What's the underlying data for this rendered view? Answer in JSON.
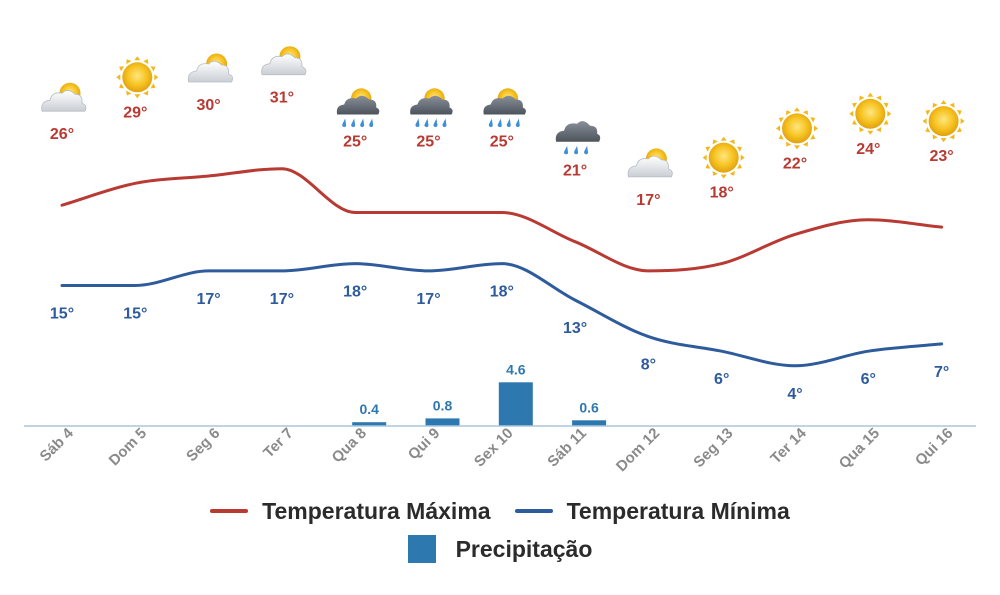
{
  "chart_data": {
    "type": "line",
    "categories": [
      "Sáb 4",
      "Dom 5",
      "Seg 6",
      "Ter 7",
      "Qua 8",
      "Qui 9",
      "Sex 10",
      "Sáb 11",
      "Dom 12",
      "Seg 13",
      "Ter 14",
      "Qua 15",
      "Qui 16"
    ],
    "series": [
      {
        "name": "Temperatura Máxima",
        "kind": "line",
        "color": "#b83a32",
        "values": [
          26,
          29,
          30,
          31,
          25,
          25,
          25,
          21,
          17,
          18,
          22,
          24,
          23
        ]
      },
      {
        "name": "Temperatura Mínima",
        "kind": "line",
        "color": "#2e5b9c",
        "values": [
          15,
          15,
          17,
          17,
          18,
          17,
          18,
          13,
          8,
          6,
          4,
          6,
          7
        ]
      },
      {
        "name": "Precipitação",
        "kind": "bar",
        "color": "#2e78b0",
        "values": [
          0,
          0,
          0,
          0,
          0.4,
          0.8,
          4.6,
          0.6,
          0,
          0,
          0,
          0,
          0
        ]
      }
    ],
    "temp_unit": "°",
    "weather_icons": [
      "partly-cloudy-icon",
      "sun-icon",
      "partly-cloudy-icon",
      "partly-cloudy-icon",
      "sun-cloud-rain-icon",
      "sun-cloud-rain-icon",
      "sun-cloud-rain-icon",
      "cloud-rain-icon",
      "partly-cloudy-icon",
      "sun-icon",
      "sun-icon",
      "sun-icon",
      "sun-icon"
    ],
    "legend": {
      "position": "bottom",
      "items": [
        "Temperatura Máxima",
        "Temperatura Mínima",
        "Precipitação"
      ]
    },
    "grid": false
  },
  "colors": {
    "max": "#b83a32",
    "min": "#2e5b9c",
    "precip": "#2e78b0",
    "axis": "#a8c6df",
    "tick": "#8a8a8a"
  }
}
